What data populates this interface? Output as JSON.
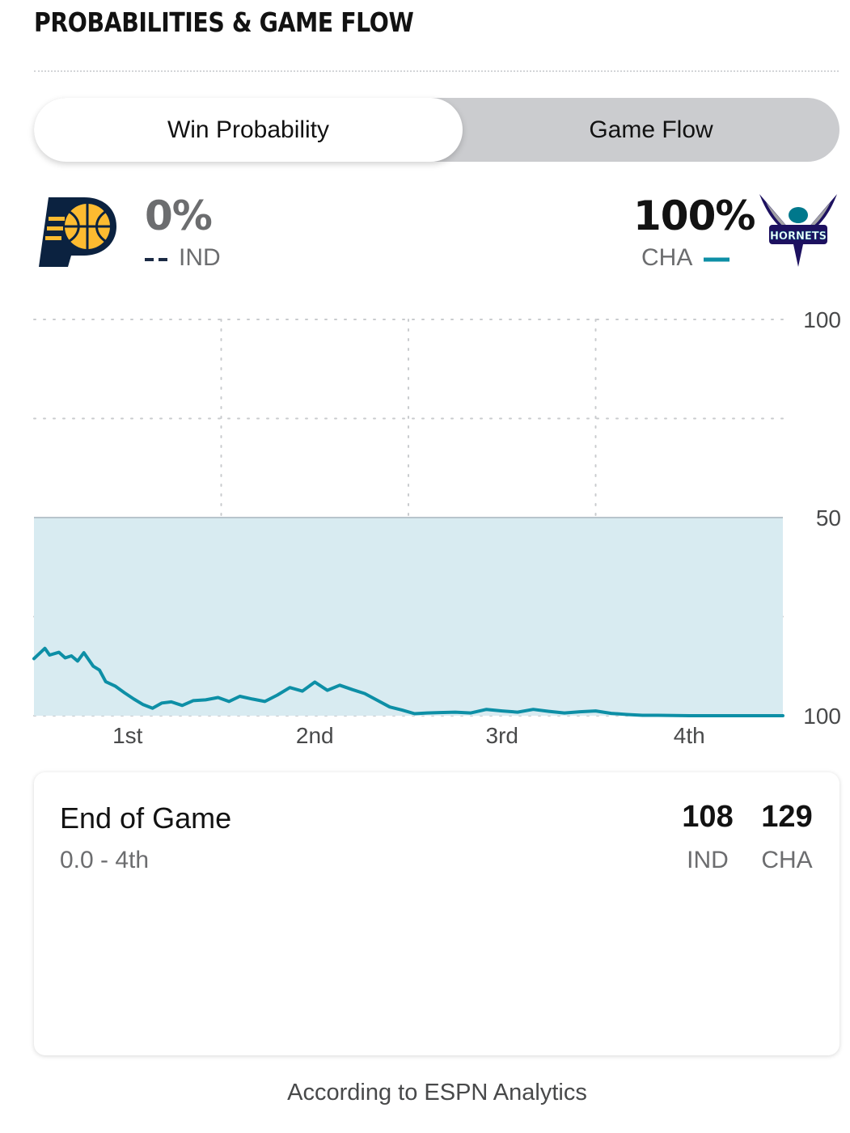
{
  "header": {
    "title": "PROBABILITIES & GAME FLOW"
  },
  "toggle": {
    "active_label": "Win Probability",
    "inactive_label": "Game Flow"
  },
  "teams": {
    "away": {
      "abbr": "IND",
      "win_pct": "0%",
      "line_color": "#1b2a44",
      "primary": "#002d62",
      "secondary": "#fdbb30"
    },
    "home": {
      "abbr": "CHA",
      "win_pct": "100%",
      "line_color": "#0d8fa6",
      "primary": "#1d1160",
      "secondary": "#00788c",
      "logo_text": "HORNETS"
    }
  },
  "chart_data": {
    "type": "line",
    "y_labels": [
      "100",
      "50",
      "100"
    ],
    "categories": [
      "1st",
      "2nd",
      "3rd",
      "4th"
    ],
    "x_range": [
      0,
      48
    ],
    "ylim": [
      0,
      100
    ],
    "fill_color": "#d8ebf1",
    "series": [
      {
        "team": "CHA",
        "x": [
          0,
          0.7,
          1.0,
          1.6,
          2.0,
          2.4,
          2.8,
          3.2,
          3.8,
          4.2,
          4.6,
          5.2,
          5.8,
          6.4,
          7.0,
          7.6,
          8.2,
          8.8,
          9.5,
          10.2,
          11.0,
          11.8,
          12.5,
          13.2,
          14.0,
          14.8,
          15.6,
          16.4,
          17.2,
          18.0,
          18.8,
          19.6,
          20.4,
          21.2,
          22.0,
          22.8,
          23.6,
          24.4,
          25.2,
          26.0,
          27.0,
          28.0,
          29.0,
          30.0,
          31.0,
          32.0,
          33.0,
          34.0,
          35.0,
          36.0,
          37.0,
          38.0,
          39.0,
          40.0,
          42.0,
          44.0,
          46.0,
          48.0
        ],
        "values": [
          14.4,
          17.0,
          15.3,
          16.0,
          14.6,
          15.1,
          13.8,
          15.9,
          12.5,
          11.5,
          8.6,
          7.5,
          5.8,
          4.2,
          2.8,
          1.9,
          3.2,
          3.5,
          2.6,
          3.8,
          4.0,
          4.6,
          3.6,
          4.9,
          4.2,
          3.6,
          5.2,
          7.1,
          6.2,
          8.5,
          6.4,
          7.7,
          6.6,
          5.6,
          3.9,
          2.2,
          1.4,
          0.5,
          0.7,
          0.8,
          0.9,
          0.7,
          1.6,
          1.2,
          0.9,
          1.6,
          1.1,
          0.7,
          1.0,
          1.2,
          0.6,
          0.3,
          0.1,
          0.1,
          0.0,
          0.0,
          0.0,
          0.0
        ]
      }
    ]
  },
  "card": {
    "title": "End of Game",
    "subtitle": "0.0 - 4th",
    "away_score": "108",
    "home_score": "129",
    "away_abbr": "IND",
    "home_abbr": "CHA"
  },
  "footer": {
    "text": "According to ESPN Analytics"
  }
}
